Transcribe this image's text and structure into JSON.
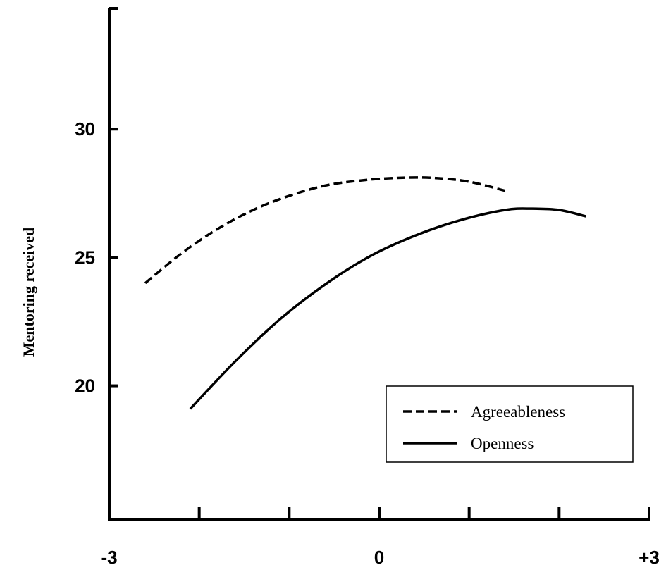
{
  "chart_data": {
    "type": "line",
    "title": "",
    "xlabel": "",
    "ylabel": "Mentoring received",
    "xlim": [
      -3,
      3
    ],
    "ylim": [
      14.8,
      34.7
    ],
    "x_tick_labels": [
      {
        "value": -3,
        "label": "-3"
      },
      {
        "value": 0,
        "label": "0"
      },
      {
        "value": 3,
        "label": "+3"
      }
    ],
    "x_minor_ticks": [
      -2,
      -1,
      1,
      2
    ],
    "y_ticks": [
      {
        "value": 20,
        "label": "20"
      },
      {
        "value": 25,
        "label": "25"
      },
      {
        "value": 30,
        "label": "30"
      }
    ],
    "grid": false,
    "legend_position": "bottom-right",
    "series": [
      {
        "name": "Agreeableness",
        "style": "dashed",
        "color": "#000000",
        "x": [
          -2.6,
          -2.2,
          -1.8,
          -1.4,
          -1.0,
          -0.6,
          -0.2,
          0.2,
          0.6,
          1.0,
          1.4
        ],
        "y": [
          24.0,
          25.15,
          26.1,
          26.85,
          27.4,
          27.8,
          28.0,
          28.1,
          28.1,
          27.95,
          27.6
        ]
      },
      {
        "name": "Openness",
        "style": "solid",
        "color": "#000000",
        "x": [
          -2.1,
          -1.6,
          -1.1,
          -0.6,
          -0.1,
          0.4,
          0.9,
          1.4,
          1.7,
          2.0,
          2.3
        ],
        "y": [
          19.1,
          20.95,
          22.6,
          23.95,
          25.05,
          25.85,
          26.45,
          26.85,
          26.9,
          26.85,
          26.6
        ]
      }
    ]
  }
}
